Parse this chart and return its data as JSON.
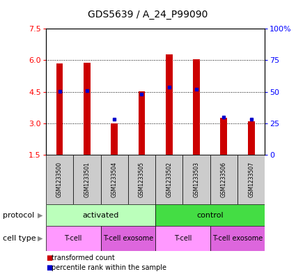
{
  "title": "GDS5639 / A_24_P99090",
  "samples": [
    "GSM1233500",
    "GSM1233501",
    "GSM1233504",
    "GSM1233505",
    "GSM1233502",
    "GSM1233503",
    "GSM1233506",
    "GSM1233507"
  ],
  "red_values": [
    5.85,
    5.87,
    2.98,
    4.52,
    6.28,
    6.04,
    3.25,
    3.08
  ],
  "blue_values": [
    4.52,
    4.55,
    3.2,
    4.38,
    4.72,
    4.62,
    3.28,
    3.18
  ],
  "ylim_left": [
    1.5,
    7.5
  ],
  "ylim_right": [
    0,
    100
  ],
  "yticks_left": [
    1.5,
    3.0,
    4.5,
    6.0,
    7.5
  ],
  "yticks_right": [
    0,
    25,
    50,
    75,
    100
  ],
  "ytick_labels_right": [
    "0",
    "25",
    "50",
    "75",
    "100%"
  ],
  "protocol_groups": [
    {
      "label": "activated",
      "start": 0,
      "end": 4,
      "color": "#bbffbb"
    },
    {
      "label": "control",
      "start": 4,
      "end": 8,
      "color": "#44dd44"
    }
  ],
  "cell_type_groups": [
    {
      "label": "T-cell",
      "start": 0,
      "end": 2,
      "color": "#ff99ff"
    },
    {
      "label": "T-cell exosome",
      "start": 2,
      "end": 4,
      "color": "#dd66dd"
    },
    {
      "label": "T-cell",
      "start": 4,
      "end": 6,
      "color": "#ff99ff"
    },
    {
      "label": "T-cell exosome",
      "start": 6,
      "end": 8,
      "color": "#dd66dd"
    }
  ],
  "bar_color": "#cc0000",
  "dot_color": "#0000cc",
  "baseline": 1.5,
  "bg_color": "#ffffff",
  "sample_bg_color": "#cccccc",
  "bar_width": 0.25
}
